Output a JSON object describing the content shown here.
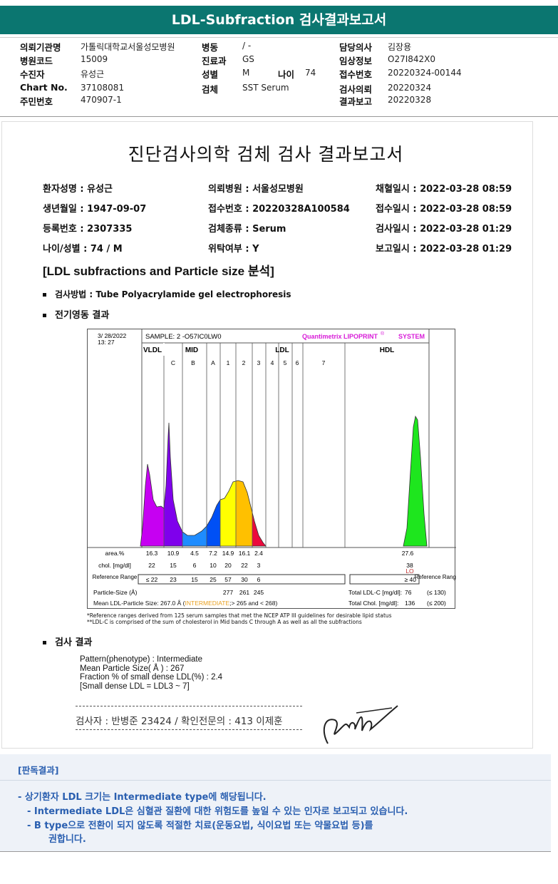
{
  "title": "LDL-Subfraction 검사결과보고서",
  "header": {
    "col1": [
      [
        "의뢰기관명",
        "가톨릭대학교서울성모병원"
      ],
      [
        "병원코드",
        "15009"
      ],
      [
        "수진자",
        "유성근"
      ],
      [
        "Chart No.",
        "37108081"
      ],
      [
        "주민번호",
        "470907-1"
      ]
    ],
    "col2": [
      [
        "병동",
        "/ -"
      ],
      [
        "진료과",
        "GS"
      ],
      [
        "성별",
        "M"
      ],
      [
        "검체",
        "SST Serum"
      ]
    ],
    "age_label": "나이",
    "age_value": "74",
    "col3": [
      [
        "담당의사",
        "김장용"
      ],
      [
        "임상정보",
        "O27I842X0"
      ],
      [
        "접수번호",
        "20220324-00144"
      ],
      [
        "검사의뢰",
        "20220324"
      ],
      [
        "결과보고",
        "20220328"
      ]
    ]
  },
  "report": {
    "title": "진단검사의학 검체 검사 결과보고서",
    "info": [
      [
        "환자성명 : 유성근",
        "의뢰병원 : 서울성모병원",
        "채혈일시 : 2022-03-28 08:59"
      ],
      [
        "생년월일 : 1947-09-07",
        "접수번호 : 20220328A100584",
        "접수일시 : 2022-03-28 08:59"
      ],
      [
        "등록번호 : 2307335",
        "검체종류 : Serum",
        "검사일시 : 2022-03-28 01:29"
      ],
      [
        "나이/성별 : 74 / M",
        "위탁여부 : Y",
        "보고일시 : 2022-03-28 01:29"
      ]
    ],
    "section_title": "[LDL subfractions and Particle size 분석]",
    "method": "검사방법 : Tube Polyacrylamide gel electrophoresis",
    "electro": "전기영동 결과",
    "result_heading": "검사 결과",
    "results": [
      "Pattern(phenotype) : Intermediate",
      "Mean Particle Size( Å ) : 267",
      "Fraction % of small dense LDL(%) : 2.4",
      "[Small dense LDL = LDL3 ~ 7]"
    ],
    "signature_line": "검사자 : 반병준  23424  /  확인전문의 : 413  이제훈"
  },
  "lipoprint": {
    "date": "3/ 28/2022",
    "time": "13: 27",
    "sample": "SAMPLE:   2 -O57IC0LW0",
    "brand": "Quantimetrix LIPOPRINT",
    "reg": "®",
    "system": "SYSTEM",
    "groups": [
      "VLDL",
      "MID",
      "LDL",
      "HDL"
    ],
    "bands": [
      "C",
      "B",
      "A",
      "1",
      "2",
      "3",
      "4",
      "5",
      "6",
      "7"
    ],
    "band_colors": {
      "VLDL": "#c600f2",
      "C": "#7f00ec",
      "B": "#1e8cff",
      "A": "#0050f5",
      "1": "#ffff00",
      "2": "#ffc000",
      "3": "#ec0a3c",
      "HDL": "#1ee61e"
    },
    "area_label": "area.%",
    "area": [
      "16.3",
      "10.9",
      "4.5",
      "7.2",
      "14.9",
      "16.1",
      "2.4"
    ],
    "area_hdl": "27.6",
    "chol_label": "chol. [mg/dl]",
    "chol": [
      "22",
      "15",
      "6",
      "10",
      "20",
      "22",
      "3"
    ],
    "chol_hdl": "38",
    "hdl_flag": "LO",
    "ref_label": "Reference Range",
    "ref": [
      "≤ 22",
      "23",
      "15",
      "25",
      "57",
      "30",
      "6"
    ],
    "ref_hdl": "≥ 40",
    "ref_label_right": "Reference Range",
    "psize_label": "Particle-Size (Å)",
    "psize": [
      "277",
      "261",
      "245"
    ],
    "mean_label": "Mean LDL-Particle Size:   267.0 Å  (",
    "mean_class": "INTERMEDIATE",
    "mean_tail": ";> 265 and < 268)",
    "total_ldl_label": "Total LDL-C [mg/dl]:",
    "total_ldl": "76",
    "total_ldl_ref": "(≤ 130)",
    "total_chol_label": "Total Chol. [mg/dl]:",
    "total_chol": "136",
    "total_chol_ref": "(≤ 200)",
    "footnotes": [
      "*Reference ranges derived from 125 serum samples that met the NCEP ATP III guidelines for desirable lipid status",
      "**LDL-C is comprised of the sum of cholesterol in Mid bands C through A as well as all the subfractions"
    ]
  },
  "interpretation": {
    "heading": "[판독결과]",
    "lines": [
      "-  상기환자 LDL 크기는 Intermediate type에 해당됩니다.",
      "-  Intermediate LDL은 심혈관 질환에 대한 위험도를 높일 수 있는 인자로 보고되고 있습니다.",
      "-  B type으로 전환이 되지 않도록 적절한 치료(운동요법, 식이요법 또는 약물요법 등)를",
      "권합니다."
    ]
  }
}
